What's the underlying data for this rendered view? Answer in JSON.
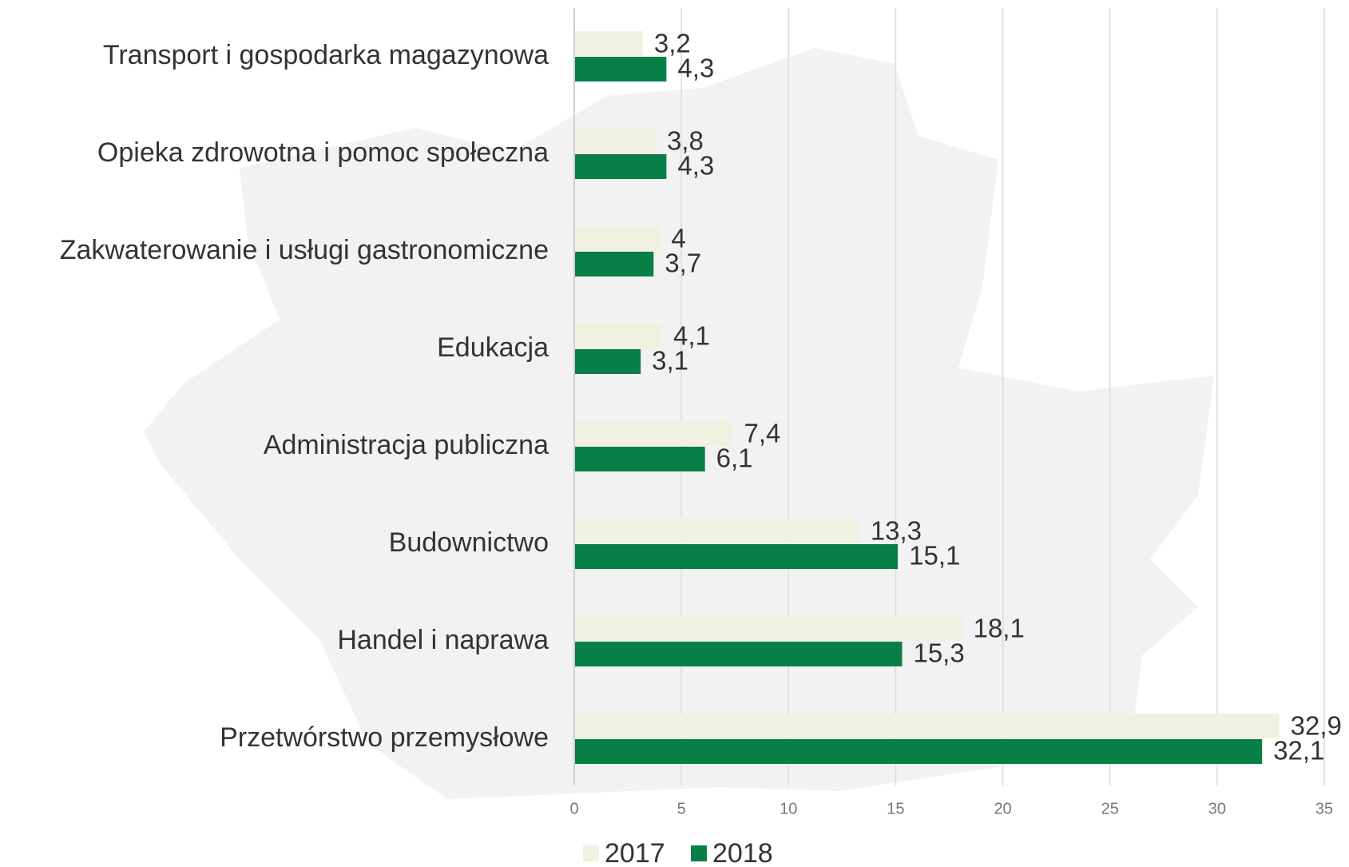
{
  "chart_data": {
    "type": "hbar",
    "categories": [
      "Transport i gospodarka magazynowa",
      "Opieka zdrowotna i pomoc społeczna",
      "Zakwaterowanie i usługi gastronomiczne",
      "Edukacja",
      "Administracja publiczna",
      "Budownictwo",
      "Handel i naprawa",
      "Przetwórstwo przemysłowe"
    ],
    "series": [
      {
        "name": "2017",
        "color": "#f0f2df",
        "values": [
          3.2,
          3.8,
          4,
          4.1,
          7.4,
          13.3,
          18.1,
          32.9
        ],
        "value_labels": [
          "3,2",
          "3,8",
          "4",
          "4,1",
          "7,4",
          "13,3",
          "18,1",
          "32,9"
        ]
      },
      {
        "name": "2018",
        "color": "#087f45",
        "values": [
          4.3,
          4.3,
          3.7,
          3.1,
          6.1,
          15.1,
          15.3,
          32.1
        ],
        "value_labels": [
          "4,3",
          "4,3",
          "3,7",
          "3,1",
          "6,1",
          "15,1",
          "15,3",
          "32,1"
        ]
      }
    ],
    "xlim": [
      0,
      35
    ],
    "xticks": [
      0,
      5,
      10,
      15,
      20,
      25,
      30,
      35
    ],
    "grid": true
  }
}
